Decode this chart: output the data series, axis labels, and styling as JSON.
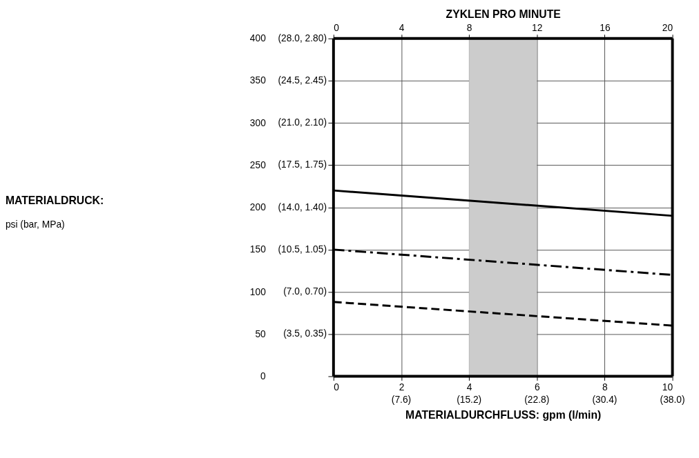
{
  "chart_data": {
    "type": "line",
    "xlabel": "MATERIALDURCHFLUSS: gpm (l/min)",
    "ylabel": "MATERIALDRUCK:\npsi (bar, MPa)",
    "x2label": "ZYKLEN PRO MINUTE",
    "x": [
      0,
      10
    ],
    "series": [
      {
        "color": "#000000",
        "values": [
          220,
          190
        ],
        "line_style": "solid"
      },
      {
        "color": "#000000",
        "values": [
          150,
          120
        ],
        "line_style": "dashdot"
      },
      {
        "color": "#000000",
        "values": [
          88,
          60
        ],
        "line_style": "dashed"
      }
    ],
    "xlim": [
      0,
      10
    ],
    "xticks": [
      0,
      2,
      4,
      6,
      8,
      10
    ],
    "x2lim": [
      0,
      20
    ],
    "x2ticks": [
      0,
      4,
      8,
      12,
      16,
      20
    ],
    "ylim": [
      0,
      400
    ],
    "yticks": [
      0,
      50,
      100,
      150,
      200,
      250,
      300,
      350,
      400
    ],
    "annotations": [
      "(7.6)",
      "(15.2)",
      "(22.8)",
      "(30.4)",
      "(38.0)",
      "(3.5, 0.35)",
      "(7.0, 0.70)",
      "(10.5, 1.05)",
      "(14.0, 1.40)",
      "(17.5, 1.75)",
      "(21.0, 2.10)",
      "(24.5, 2.45)",
      "(28.0, 2.80)"
    ],
    "bands": [
      {
        "axis": "x",
        "from": 4,
        "to": 6,
        "color": "#cccccc"
      }
    ],
    "grid": true
  }
}
